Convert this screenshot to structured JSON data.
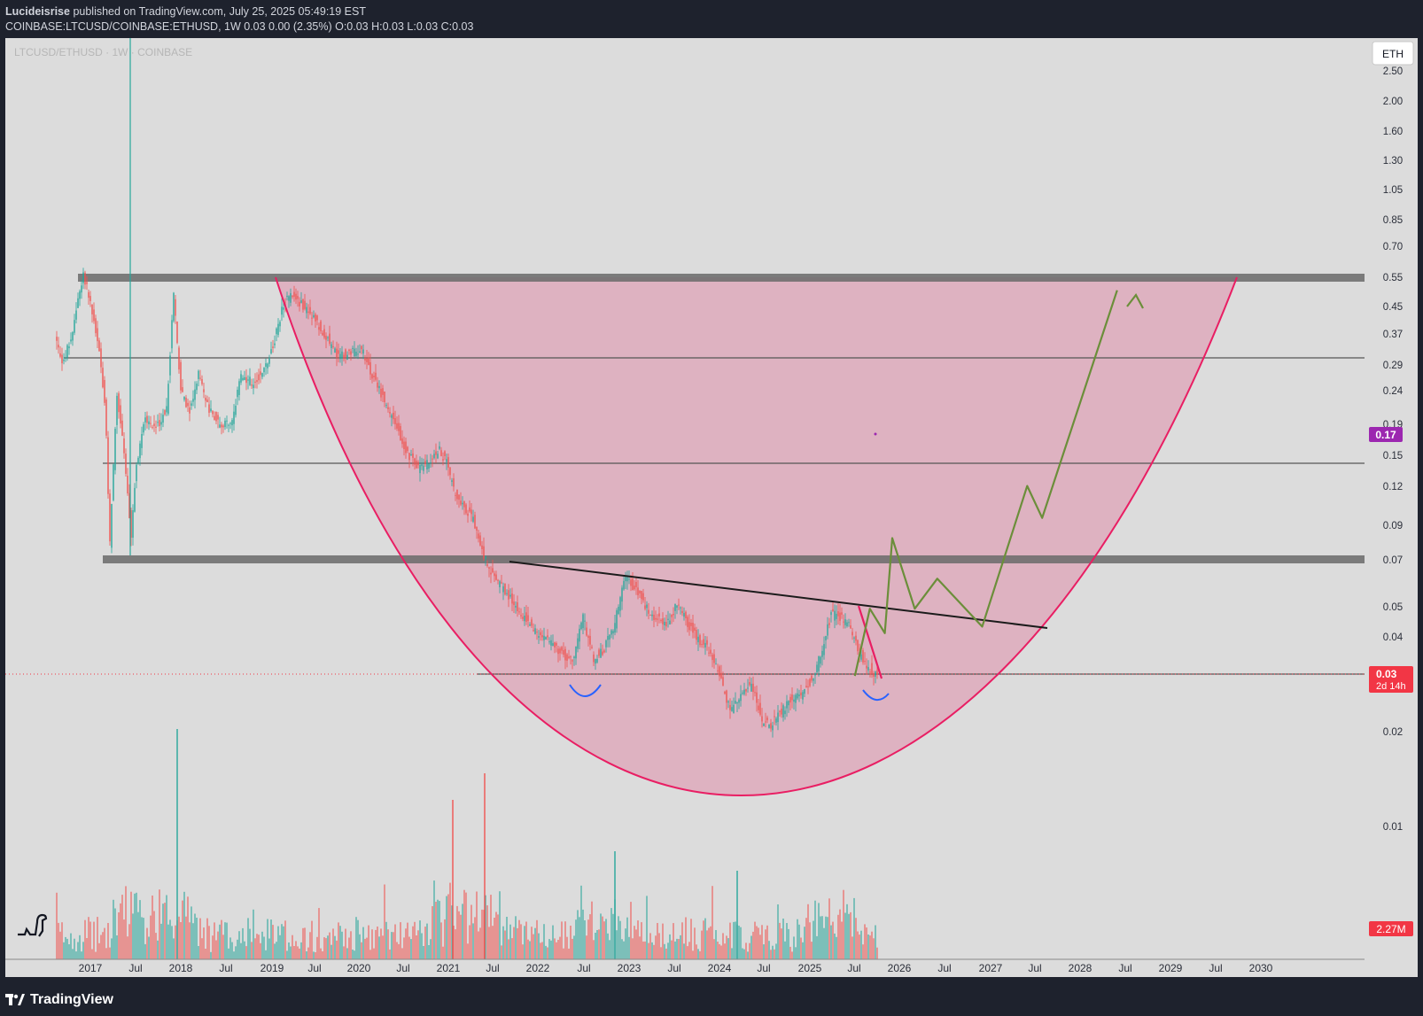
{
  "header": {
    "author": "Lucideisrise",
    "published": "published on TradingView.com, July 25, 2025 05:49:19 EST",
    "symbol_line": "COINBASE:LTCUSD/COINBASE:ETHUSD, 1W  0.03 0.00 (2.35%) O:0.03 H:0.03 L:0.03 C:0.03"
  },
  "chart": {
    "watermark": "LTCUSD/ETHUSD · 1W · COINBASE",
    "currency_button": "ETH",
    "price_tag": {
      "value": "0.03",
      "countdown": "2d 14h",
      "color": "#f23645"
    },
    "alert_tag": {
      "value": "0.17",
      "color": "#9c27b0"
    },
    "volume_tag": {
      "value": "2.27M",
      "color": "#f23645"
    },
    "up_color": "#26a69a",
    "down_color": "#ef5350",
    "cup_color": "#e91e63",
    "forecast_color": "#6b8e3a",
    "dip_marker_color": "#2962ff"
  },
  "chart_data": {
    "type": "candlestick",
    "scale": "log",
    "ylim": [
      0.017,
      2.6
    ],
    "y_ticks": [
      "2.50",
      "2.00",
      "1.60",
      "1.30",
      "1.05",
      "0.85",
      "0.70",
      "0.55",
      "0.45",
      "0.37",
      "0.29",
      "0.24",
      "0.19",
      "0.15",
      "0.12",
      "0.09",
      "0.07",
      "0.05",
      "0.04",
      "0.02",
      "0.01"
    ],
    "x_ticks": [
      "2017",
      "Jul",
      "2018",
      "Jul",
      "2019",
      "Jul",
      "2020",
      "Jul",
      "2021",
      "Jul",
      "2022",
      "Jul",
      "2023",
      "Jul",
      "2024",
      "Jul",
      "2025",
      "Jul",
      "2026",
      "Jul",
      "2027",
      "Jul",
      "2028",
      "Jul",
      "2029",
      "Jul",
      "2030"
    ],
    "horizontal_levels": [
      {
        "value": 0.55,
        "style": "zone"
      },
      {
        "value": 0.31,
        "style": "line"
      },
      {
        "value": 0.14,
        "style": "line"
      },
      {
        "value": 0.07,
        "style": "zone"
      },
      {
        "value": 0.03,
        "style": "line"
      }
    ],
    "trendline": {
      "start": [
        "2021-07",
        0.07
      ],
      "end": [
        "2027-08",
        0.04
      ]
    },
    "projection": [
      [
        "2025-07",
        0.03
      ],
      [
        "2025-09",
        0.049
      ],
      [
        "2025-11",
        0.041
      ],
      [
        "2025-12",
        0.082
      ],
      [
        "2026-03",
        0.049
      ],
      [
        "2026-06",
        0.061
      ],
      [
        "2026-12",
        0.043
      ],
      [
        "2027-06",
        0.12
      ],
      [
        "2027-08",
        0.095
      ],
      [
        "2028-06",
        0.5
      ]
    ]
  }
}
